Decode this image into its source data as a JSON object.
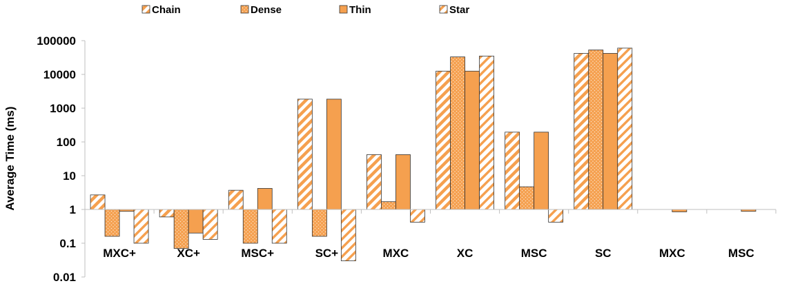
{
  "chart_data": {
    "type": "bar",
    "title": "",
    "xlabel": "",
    "ylabel": "Average Time (ms)",
    "yscale": "log",
    "ylim": [
      0.01,
      100000
    ],
    "baseline": 1,
    "yticks": [
      "0.01",
      "0.1",
      "1",
      "10",
      "100",
      "1000",
      "10000",
      "100000"
    ],
    "legend_position": "top",
    "grid": false,
    "bar_color": "#f5a04f",
    "categories": [
      "MXC+",
      "XC+",
      "MSC+",
      "SC+",
      "MXC",
      "XC",
      "MSC",
      "SC",
      "MXC",
      "MSC"
    ],
    "series": [
      {
        "name": "Chain",
        "pattern": "diagonal",
        "values": [
          2.7,
          0.6,
          3.7,
          1850,
          42,
          12500,
          195,
          42000,
          null,
          null
        ]
      },
      {
        "name": "Dense",
        "pattern": "dots",
        "values": [
          0.16,
          0.07,
          0.1,
          0.16,
          1.7,
          33000,
          4.7,
          53000,
          null,
          null
        ]
      },
      {
        "name": "Thin",
        "pattern": "solid",
        "values": [
          0.88,
          0.2,
          4.2,
          1850,
          42,
          12500,
          195,
          42000,
          0.85,
          0.88
        ]
      },
      {
        "name": "Star",
        "pattern": "diagonal-light",
        "values": [
          0.1,
          0.13,
          0.1,
          0.03,
          0.42,
          35000,
          0.42,
          60000,
          null,
          null
        ]
      }
    ]
  }
}
